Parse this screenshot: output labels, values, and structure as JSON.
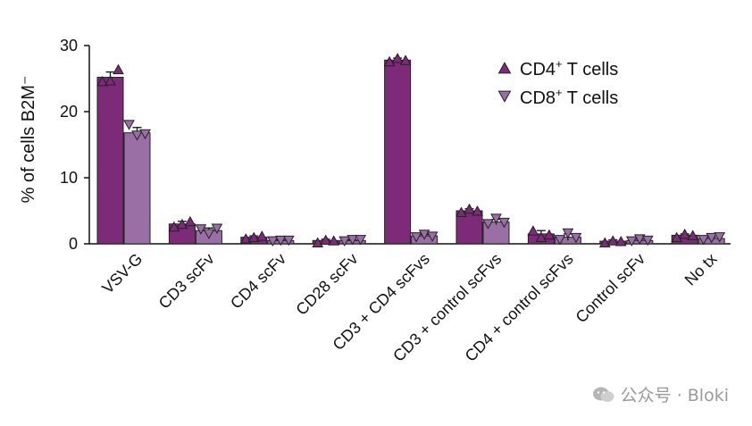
{
  "chart_data": {
    "type": "bar",
    "ylabel": "% of cells B2M⁻",
    "ylim": [
      0,
      30
    ],
    "yticks": [
      0,
      10,
      20,
      30
    ],
    "categories": [
      "VSV-G",
      "CD3 scFv",
      "CD4 scFv",
      "CD28 scFv",
      "CD3 + CD4 scFvs",
      "CD3 + control scFvs",
      "CD4 + control scFvs",
      "Control scFv",
      "No tx"
    ],
    "series": [
      {
        "name": "CD4⁺ T cells",
        "label_base": "CD4",
        "label_sup": "+",
        "label_rest": " T cells",
        "marker": "triangle-up",
        "color": "#7d2a78",
        "values": [
          25.2,
          3.0,
          1.0,
          0.5,
          27.8,
          5.0,
          1.5,
          0.4,
          1.3
        ],
        "errors": [
          0.8,
          0.4,
          0.2,
          0.2,
          0.3,
          0.3,
          0.5,
          0.2,
          0.2
        ],
        "points": [
          [
            24.6,
            24.7,
            26.4
          ],
          [
            2.6,
            3.0,
            3.4
          ],
          [
            0.8,
            1.0,
            1.2
          ],
          [
            0.2,
            0.6,
            0.5
          ],
          [
            27.6,
            28.1,
            27.8
          ],
          [
            4.8,
            5.3,
            5.0
          ],
          [
            2.0,
            1.0,
            1.4
          ],
          [
            0.2,
            0.5,
            0.4
          ],
          [
            1.0,
            1.5,
            1.3
          ]
        ]
      },
      {
        "name": "CD8⁺ T cells",
        "label_base": "CD8",
        "label_sup": "+",
        "label_rest": " T cells",
        "marker": "triangle-down",
        "color": "#9a6fa6",
        "values": [
          16.8,
          2.0,
          0.5,
          0.5,
          1.2,
          3.3,
          1.0,
          0.5,
          0.8
        ],
        "errors": [
          0.8,
          0.4,
          0.1,
          0.1,
          0.2,
          0.4,
          0.5,
          0.2,
          0.2
        ],
        "points": [
          [
            18.0,
            16.4,
            16.6
          ],
          [
            2.2,
            1.5,
            2.3
          ],
          [
            0.4,
            0.5,
            0.5
          ],
          [
            0.4,
            0.6,
            0.6
          ],
          [
            1.0,
            1.4,
            1.1
          ],
          [
            3.0,
            3.8,
            3.2
          ],
          [
            0.6,
            1.6,
            0.9
          ],
          [
            0.4,
            0.7,
            0.5
          ],
          [
            0.6,
            0.9,
            1.0
          ]
        ]
      }
    ]
  },
  "watermark": {
    "icon": "wechat-icon",
    "text": "公众号 · Bloki"
  }
}
